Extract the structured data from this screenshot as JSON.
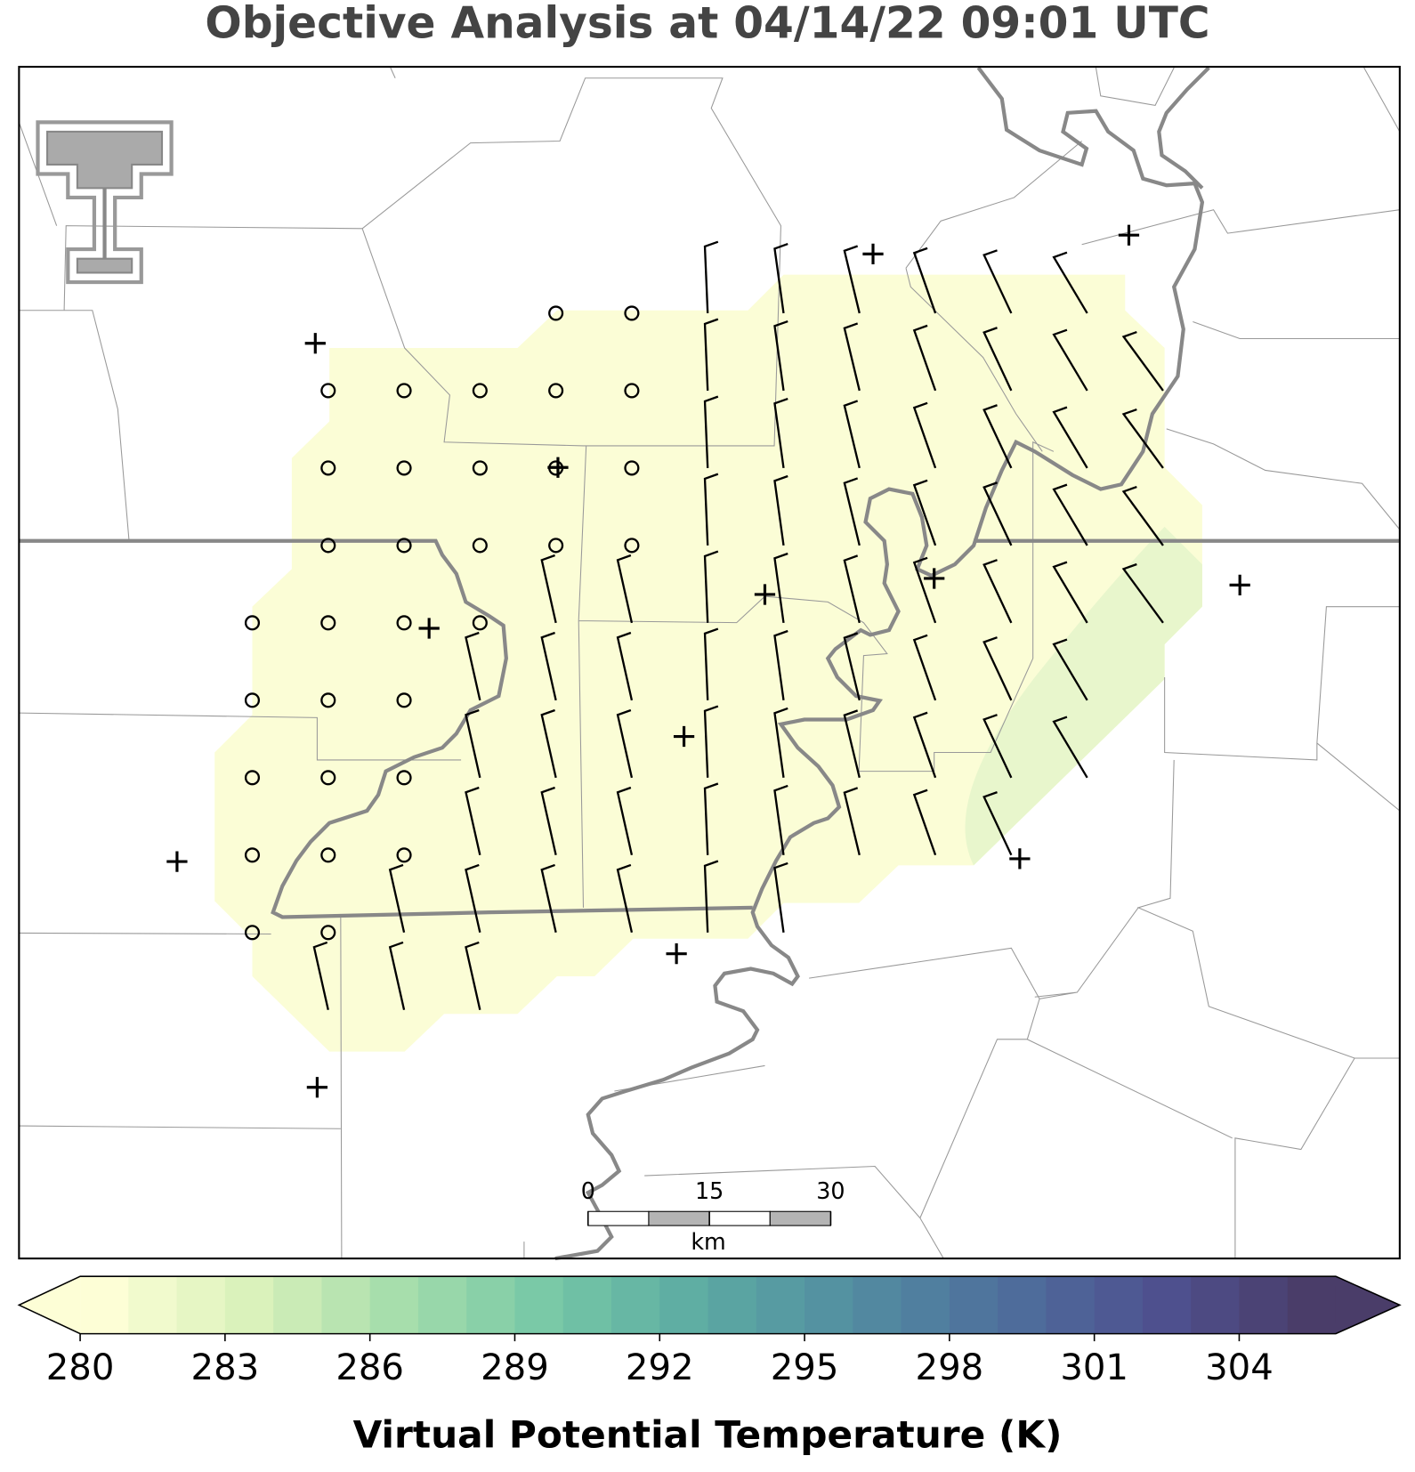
{
  "title": "Objective Analysis at 04/14/22 09:01 UTC",
  "scale_bar": {
    "ticks": [
      0,
      15,
      30
    ],
    "unit": "km"
  },
  "colorbar": {
    "label": "Virtual Potential Temperature (K)",
    "lim": [
      280,
      306
    ],
    "ticks": [
      280,
      283,
      286,
      289,
      292,
      295,
      298,
      301,
      304
    ],
    "colors": [
      "#fdfed6",
      "#d9f1ba",
      "#a3dcab",
      "#74c6a6",
      "#5ba9a2",
      "#528ca1",
      "#4e6e9c",
      "#4e5190",
      "#4a3d69"
    ]
  }
}
